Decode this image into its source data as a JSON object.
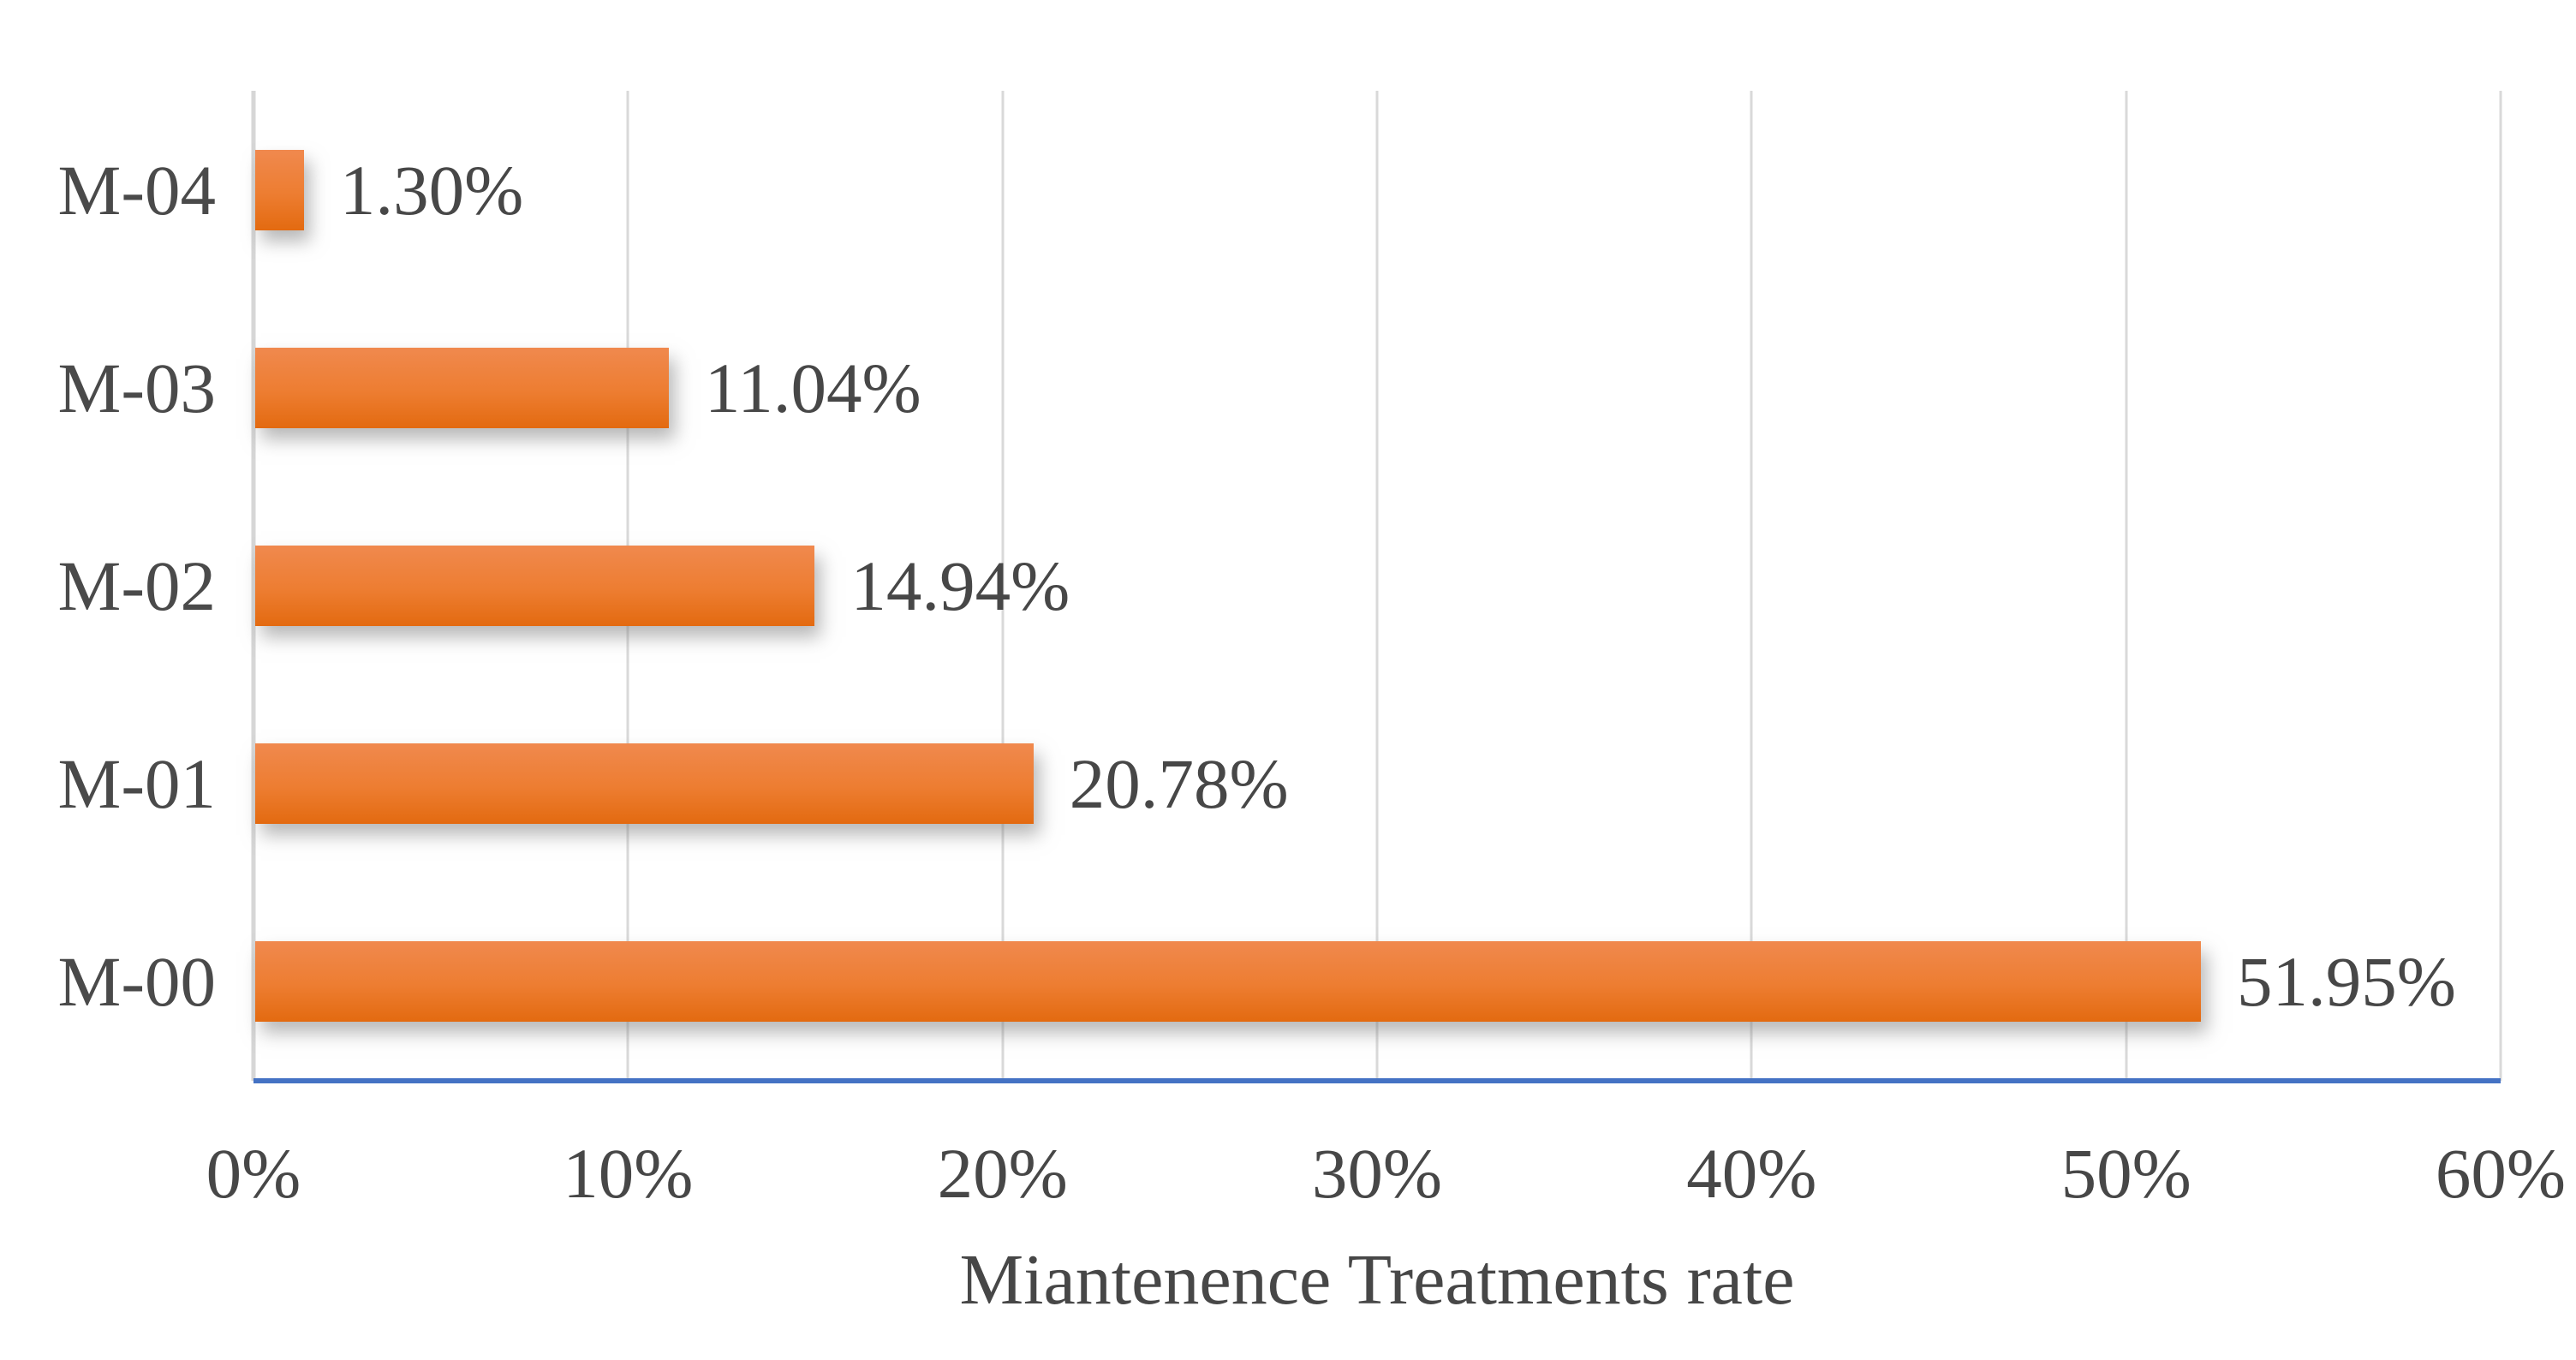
{
  "chart_data": {
    "type": "bar",
    "orientation": "horizontal",
    "title": "Miantenence Treatments rate",
    "categories": [
      "M-04",
      "M-03",
      "M-02",
      "M-01",
      "M-00"
    ],
    "values": [
      1.3,
      11.04,
      14.94,
      20.78,
      51.95
    ],
    "data_labels": [
      "1.30%",
      "11.04%",
      "14.94%",
      "20.78%",
      "51.95%"
    ],
    "x_ticks": [
      "0%",
      "10%",
      "20%",
      "30%",
      "40%",
      "50%",
      "60%"
    ],
    "x_tick_values": [
      0,
      10,
      20,
      30,
      40,
      50,
      60
    ],
    "xlim": [
      0,
      60
    ],
    "xlabel": "Miantenence Treatments rate",
    "ylabel": "",
    "grid": true,
    "legend": "none",
    "colors": {
      "bar": "#ed7d31",
      "bar_gradient_top": "#f0894e",
      "bar_gradient_bottom": "#e36a10",
      "baseline": "#4472c4",
      "gridline": "#d9d9d9",
      "text": "#474747",
      "background": "#ffffff"
    }
  }
}
